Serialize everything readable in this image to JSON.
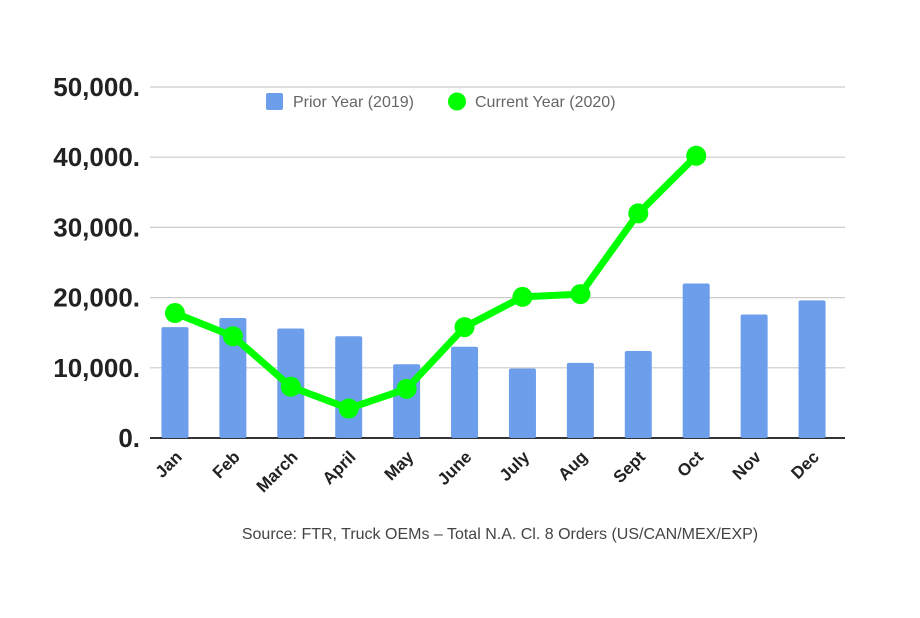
{
  "chart_data": {
    "type": "bar+line",
    "categories": [
      "Jan",
      "Feb",
      "March",
      "April",
      "May",
      "June",
      "July",
      "Aug",
      "Sept",
      "Oct",
      "Nov",
      "Dec"
    ],
    "series": [
      {
        "name": "Prior Year (2019)",
        "type": "bar",
        "color": "#6d9eeb",
        "values": [
          15800,
          17100,
          15600,
          14500,
          10500,
          13000,
          9900,
          10700,
          12400,
          22000,
          17600,
          19600
        ]
      },
      {
        "name": "Current Year (2020)",
        "type": "line",
        "color": "#00ff00",
        "values": [
          17800,
          14500,
          7300,
          4200,
          7000,
          15800,
          20100,
          20500,
          32000,
          40200,
          null,
          null
        ]
      }
    ],
    "yticks": [
      "0.",
      "10,000.",
      "20,000.",
      "30,000.",
      "40,000.",
      "50,000."
    ],
    "ylim": [
      0,
      50000
    ],
    "grid": true,
    "legend": "top",
    "source": "Source: FTR, Truck OEMs – Total N.A. Cl. 8 Orders (US/CAN/MEX/EXP)"
  }
}
